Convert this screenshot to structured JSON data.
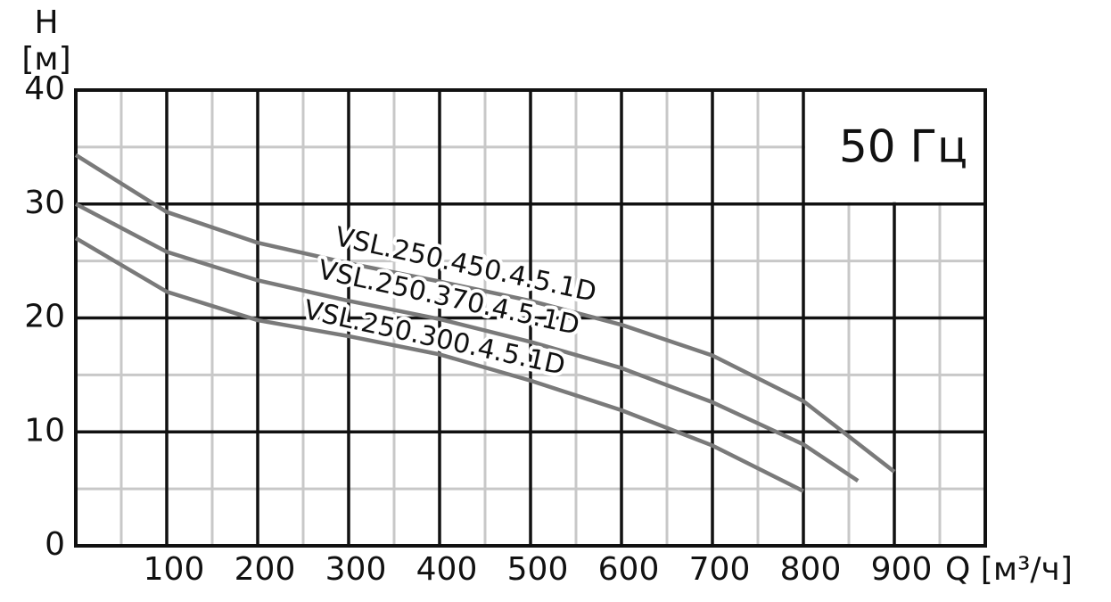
{
  "chart_data": {
    "type": "line",
    "y_label_lines": [
      "H",
      "[м]"
    ],
    "x_label": "Q [м³/ч]",
    "annotation": "50 Гц",
    "xlim": [
      0,
      1000
    ],
    "xticks": [
      100,
      200,
      300,
      400,
      500,
      600,
      700,
      800,
      900
    ],
    "ylim": [
      0,
      40
    ],
    "yticks": [
      0,
      10,
      20,
      30,
      40
    ],
    "grid": true,
    "minor_grid": true,
    "series": [
      {
        "name": "VSL.250.450.4.5.1D",
        "color": "#7a7a7a",
        "x": [
          0,
          100,
          200,
          300,
          400,
          500,
          600,
          700,
          800,
          900
        ],
        "values": [
          34.3,
          29.3,
          26.6,
          24.8,
          23.2,
          21.5,
          19.4,
          16.7,
          12.7,
          6.5
        ]
      },
      {
        "name": "VSL.250.370.4.5.1D",
        "color": "#7a7a7a",
        "x": [
          0,
          100,
          200,
          300,
          400,
          500,
          600,
          700,
          800,
          860
        ],
        "values": [
          30,
          25.8,
          23.3,
          21.5,
          19.9,
          17.9,
          15.6,
          12.6,
          8.9,
          5.7
        ]
      },
      {
        "name": "VSL.250.300.4.5.1D",
        "color": "#7a7a7a",
        "x": [
          0,
          100,
          200,
          300,
          400,
          500,
          600,
          700,
          800
        ],
        "values": [
          27,
          22.3,
          19.8,
          18.4,
          16.8,
          14.5,
          11.9,
          8.8,
          4.8
        ]
      }
    ]
  }
}
